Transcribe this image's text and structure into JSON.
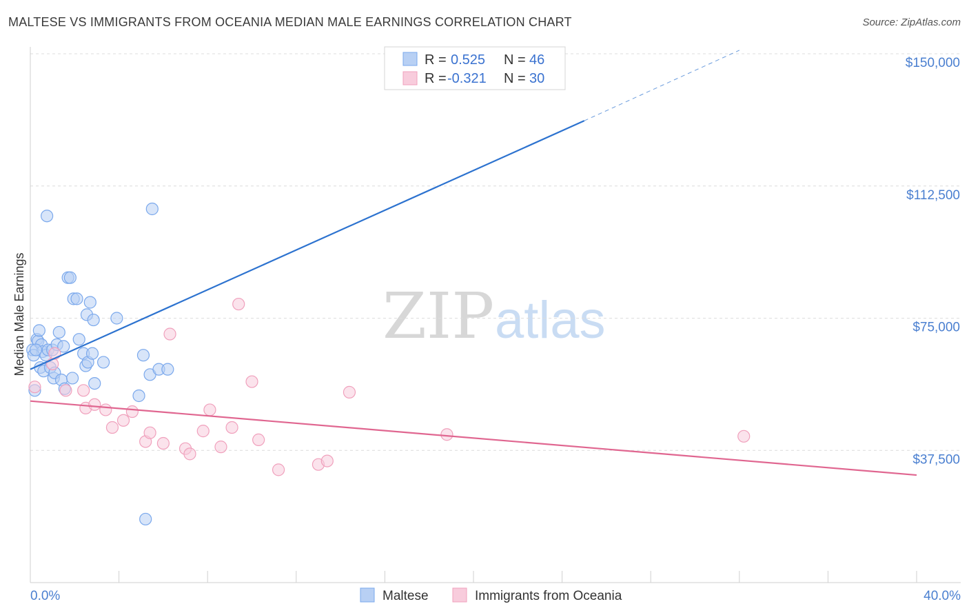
{
  "chart_data": {
    "type": "scatter",
    "title": "MALTESE VS IMMIGRANTS FROM OCEANIA MEDIAN MALE EARNINGS CORRELATION CHART",
    "source": "Source: ZipAtlas.com",
    "ylabel": "Median Male Earnings",
    "watermark": {
      "zip": "ZIP",
      "atlas": "atlas"
    },
    "xlim": [
      0,
      40
    ],
    "ylim": [
      0,
      155000
    ],
    "x_tick_labels": {
      "min": "0.0%",
      "max": "40.0%"
    },
    "y_ticks": [
      {
        "value": 37500,
        "label": "$37,500"
      },
      {
        "value": 75000,
        "label": "$75,000"
      },
      {
        "value": 112500,
        "label": "$112,500"
      },
      {
        "value": 150000,
        "label": "$150,000"
      }
    ],
    "legend": {
      "r_label": "R =",
      "n_label": "N ="
    },
    "series": [
      {
        "name": "Maltese",
        "color": "#7aa8ec",
        "fill": "#b8d0f4",
        "line_color": "#2c72cf",
        "r": "0.525",
        "n": "46",
        "trend": {
          "x0": 0,
          "y0": 60500,
          "x1": 25,
          "y1": 131000,
          "dash_x1": 32,
          "dash_y1": 151000
        },
        "points": [
          [
            0.1,
            66000
          ],
          [
            0.2,
            54500
          ],
          [
            0.3,
            69000
          ],
          [
            0.35,
            68500
          ],
          [
            0.4,
            71500
          ],
          [
            0.45,
            61000
          ],
          [
            0.5,
            67500
          ],
          [
            0.55,
            65500
          ],
          [
            0.6,
            60000
          ],
          [
            0.7,
            64500
          ],
          [
            0.75,
            104000
          ],
          [
            0.8,
            66000
          ],
          [
            0.9,
            61000
          ],
          [
            1.0,
            66000
          ],
          [
            1.05,
            58000
          ],
          [
            1.1,
            59500
          ],
          [
            1.2,
            67500
          ],
          [
            1.3,
            71000
          ],
          [
            1.4,
            57500
          ],
          [
            1.5,
            67000
          ],
          [
            1.55,
            55000
          ],
          [
            1.7,
            86500
          ],
          [
            1.8,
            86500
          ],
          [
            1.9,
            58000
          ],
          [
            1.95,
            80500
          ],
          [
            2.1,
            80500
          ],
          [
            2.2,
            69000
          ],
          [
            2.4,
            65000
          ],
          [
            2.5,
            61500
          ],
          [
            2.55,
            76000
          ],
          [
            2.6,
            62500
          ],
          [
            2.7,
            79500
          ],
          [
            2.8,
            65000
          ],
          [
            2.85,
            74500
          ],
          [
            2.9,
            56500
          ],
          [
            3.3,
            62500
          ],
          [
            3.9,
            75000
          ],
          [
            4.9,
            53000
          ],
          [
            5.1,
            64500
          ],
          [
            5.4,
            59000
          ],
          [
            5.5,
            106000
          ],
          [
            5.8,
            60500
          ],
          [
            6.2,
            60500
          ],
          [
            0.15,
            64500
          ],
          [
            0.25,
            66000
          ],
          [
            5.2,
            18000
          ]
        ]
      },
      {
        "name": "Immigrants from Oceania",
        "color": "#f0a0bc",
        "fill": "#f8ccdc",
        "line_color": "#e06690",
        "r": "-0.321",
        "n": "30",
        "trend": {
          "x0": 0,
          "y0": 51500,
          "x1": 40,
          "y1": 30500
        },
        "points": [
          [
            0.2,
            55500
          ],
          [
            1.0,
            62000
          ],
          [
            1.1,
            65000
          ],
          [
            1.6,
            54500
          ],
          [
            2.4,
            54500
          ],
          [
            2.5,
            49500
          ],
          [
            2.9,
            50500
          ],
          [
            3.4,
            49000
          ],
          [
            3.7,
            44000
          ],
          [
            4.2,
            46000
          ],
          [
            4.6,
            48500
          ],
          [
            5.2,
            40000
          ],
          [
            5.4,
            42500
          ],
          [
            6.0,
            39500
          ],
          [
            6.3,
            70500
          ],
          [
            7.0,
            38000
          ],
          [
            7.2,
            36500
          ],
          [
            7.8,
            43000
          ],
          [
            8.1,
            49000
          ],
          [
            8.6,
            38500
          ],
          [
            9.1,
            44000
          ],
          [
            9.4,
            79000
          ],
          [
            10.0,
            57000
          ],
          [
            10.3,
            40500
          ],
          [
            11.2,
            32000
          ],
          [
            13.0,
            33500
          ],
          [
            13.4,
            34500
          ],
          [
            14.4,
            54000
          ],
          [
            18.8,
            42000
          ],
          [
            32.2,
            41500
          ]
        ]
      }
    ]
  }
}
